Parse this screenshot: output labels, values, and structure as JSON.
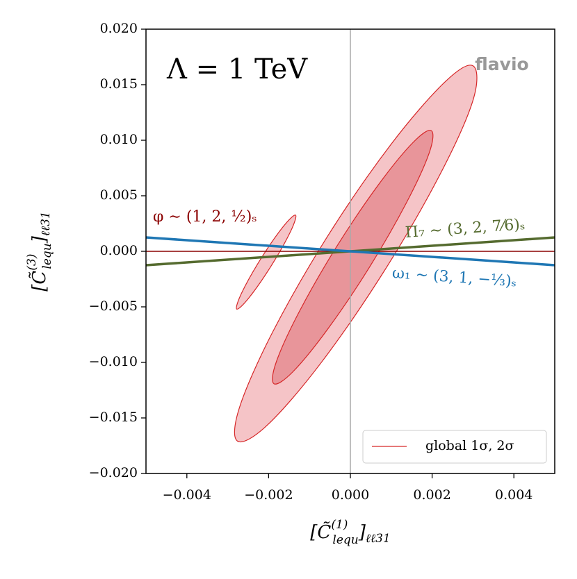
{
  "chart_data": {
    "type": "contour",
    "annotation": "Λ = 1 TeV",
    "watermark": "flavio",
    "xlabel": {
      "open": "[C̃",
      "sup": "(1)",
      "sub": "lequ",
      "close": "]",
      "sub2": "ℓℓ31"
    },
    "ylabel": {
      "open": "[C̃",
      "sup": "(3)",
      "sub": "lequ",
      "close": "]",
      "sub2": "ℓℓ31"
    },
    "xlim": [
      -0.005,
      0.005
    ],
    "ylim": [
      -0.02,
      0.02
    ],
    "xticks": [
      {
        "value": -0.004,
        "label": "−0.004"
      },
      {
        "value": -0.002,
        "label": "−0.002"
      },
      {
        "value": 0,
        "label": "0.000"
      },
      {
        "value": 0.002,
        "label": "0.002"
      },
      {
        "value": 0.004,
        "label": "0.004"
      }
    ],
    "yticks": [
      {
        "value": -0.02,
        "label": "−0.020"
      },
      {
        "value": -0.015,
        "label": "−0.015"
      },
      {
        "value": -0.01,
        "label": "−0.010"
      },
      {
        "value": -0.005,
        "label": "−0.005"
      },
      {
        "value": 0,
        "label": "0.000"
      },
      {
        "value": 0.005,
        "label": "0.005"
      },
      {
        "value": 0.01,
        "label": "0.010"
      },
      {
        "value": 0.015,
        "label": "0.015"
      },
      {
        "value": 0.02,
        "label": "0.020"
      }
    ],
    "axvline": 0,
    "contours": [
      {
        "fill": "#f5c4c7",
        "edge": "#d62728",
        "x": [
          0.003,
          0.003,
          0.00218,
          0.00082,
          -0.00072,
          -0.00203,
          -0.00276,
          -0.00271,
          -0.0019,
          -0.00055,
          0.00099,
          0.0023
        ],
        "y": [
          0.0167,
          0.0136,
          0.00683,
          -0.00182,
          -0.01005,
          -0.01564,
          -0.01709,
          -0.01403,
          -0.00726,
          0.0014,
          0.00961,
          0.0152
        ]
      },
      {
        "fill": "#f5c4c7",
        "edge": "#d62728",
        "x": [
          -0.00134,
          -0.00146,
          -0.00193,
          -0.00248,
          -0.00278,
          -0.00266,
          -0.00219,
          -0.00164
        ],
        "y": [
          0.00326,
          0.00181,
          -0.00127,
          -0.00418,
          -0.0052,
          -0.00375,
          -0.00067,
          0.00224
        ]
      },
      {
        "fill": "#e8959a",
        "edge": "#d62728",
        "x": [
          0.00198,
          0.00193,
          0.00137,
          0.00046,
          -0.00056,
          -0.00141,
          -0.00187,
          -0.00181,
          -0.00125,
          -0.00034,
          0.00068,
          0.00153
        ],
        "y": [
          0.01086,
          0.00887,
          0.00436,
          -0.00147,
          -0.00703,
          -0.01086,
          -0.01192,
          -0.00993,
          -0.00543,
          0.0004,
          0.00596,
          0.00979
        ]
      }
    ],
    "lines": [
      {
        "name": "φ ∼ (1, 2, ½)ₛ",
        "color": "#8b0000",
        "x": [
          -0.005,
          0.005
        ],
        "values": [
          0,
          0
        ]
      },
      {
        "name": "Π₇ ∼ (3, 2, 7⁄6)ₛ",
        "color": "#556b2f",
        "x": [
          -0.005,
          0.005
        ],
        "values": [
          -0.00125,
          0.00125
        ]
      },
      {
        "name": "ω₁ ∼ (3, 1, −⅓)ₛ",
        "color": "#1f77b4",
        "x": [
          -0.005,
          0.005
        ],
        "values": [
          0.00125,
          -0.00125
        ]
      }
    ],
    "legend": {
      "label": "global 1σ, 2σ",
      "color": "#d62728",
      "loc": "lower right"
    }
  }
}
